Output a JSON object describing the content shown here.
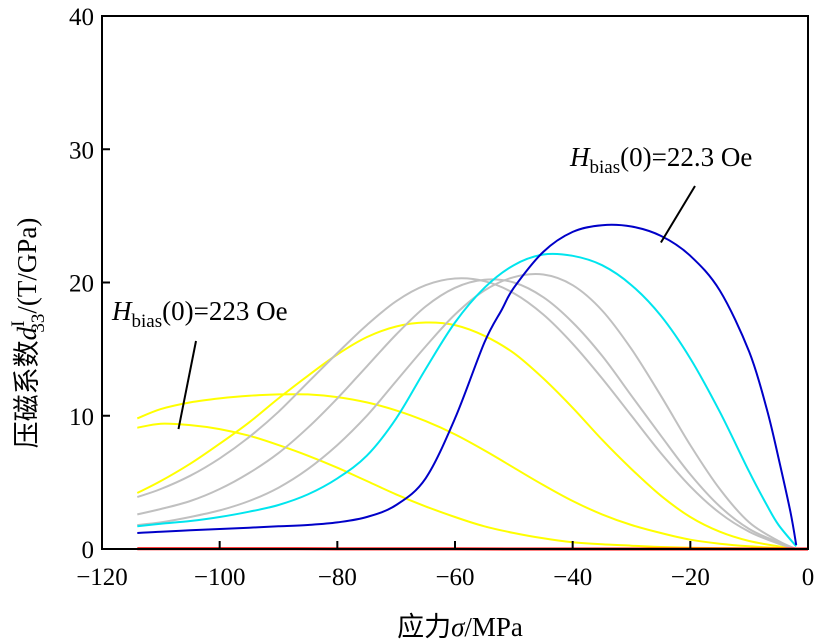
{
  "chart_data": {
    "type": "line",
    "xlabel": {
      "prefix": "应力",
      "symbol": "σ",
      "suffix": "/MPa"
    },
    "ylabel": {
      "prefix": "压磁系数",
      "symbol": "d",
      "sub": "33",
      "sup": "I",
      "suffix": "/(T/GPa)"
    },
    "xlim": [
      -120,
      0
    ],
    "ylim": [
      0,
      40
    ],
    "xticks": [
      -120,
      -100,
      -80,
      -60,
      -40,
      -20,
      0
    ],
    "xtick_labels": [
      "−120",
      "−100",
      "−80",
      "−60",
      "−40",
      "−20",
      "0"
    ],
    "yticks": [
      0,
      10,
      20,
      30,
      40
    ],
    "ytick_labels": [
      "0",
      "10",
      "20",
      "30",
      "40"
    ],
    "grid": false,
    "annotations": [
      {
        "italic": "H",
        "sub": "bias",
        "rest": "(0)=22.3 Oe",
        "point": [
          -25,
          23
        ]
      },
      {
        "italic": "H",
        "sub": "bias",
        "rest": "(0)=223 Oe",
        "point": [
          -107,
          9
        ]
      }
    ],
    "series": [
      {
        "color": "#ffff00",
        "x": [
          -114,
          -110,
          -105,
          -100,
          -95,
          -90,
          -85,
          -80,
          -75,
          -70,
          -65,
          -60,
          -55,
          -50,
          -45,
          -40,
          -35,
          -30,
          -25,
          -20,
          -15,
          -10,
          -5,
          -2
        ],
        "y": [
          9.1,
          9.4,
          9.3,
          9.0,
          8.5,
          7.8,
          7.0,
          6.1,
          5.1,
          4.1,
          3.2,
          2.4,
          1.7,
          1.2,
          0.8,
          0.5,
          0.35,
          0.25,
          0.15,
          0.1,
          0.07,
          0.04,
          0.02,
          0.0
        ]
      },
      {
        "color": "#ffff00",
        "x": [
          -114,
          -110,
          -105,
          -100,
          -95,
          -90,
          -85,
          -80,
          -75,
          -70,
          -65,
          -60,
          -55,
          -50,
          -45,
          -40,
          -35,
          -30,
          -25,
          -20,
          -15,
          -10,
          -5,
          -2
        ],
        "y": [
          9.8,
          10.5,
          11.0,
          11.3,
          11.5,
          11.6,
          11.6,
          11.4,
          11.0,
          10.4,
          9.6,
          8.6,
          7.4,
          6.1,
          4.8,
          3.6,
          2.6,
          1.8,
          1.2,
          0.7,
          0.4,
          0.2,
          0.08,
          0.0
        ]
      },
      {
        "color": "#ffff00",
        "x": [
          -114,
          -110,
          -105,
          -100,
          -95,
          -90,
          -85,
          -80,
          -75,
          -70,
          -65,
          -60,
          -55,
          -50,
          -45,
          -40,
          -35,
          -30,
          -25,
          -20,
          -15,
          -10,
          -5,
          -2
        ],
        "y": [
          4.2,
          5.1,
          6.4,
          7.9,
          9.5,
          11.3,
          13.0,
          14.6,
          15.9,
          16.7,
          17.0,
          16.8,
          16.0,
          14.7,
          12.8,
          10.6,
          8.2,
          6.0,
          4.0,
          2.4,
          1.3,
          0.6,
          0.2,
          0.0
        ]
      },
      {
        "color": "#c0c0c0",
        "x": [
          -114,
          -110,
          -105,
          -100,
          -95,
          -90,
          -85,
          -80,
          -75,
          -70,
          -65,
          -60,
          -55,
          -50,
          -45,
          -40,
          -35,
          -30,
          -25,
          -20,
          -15,
          -10,
          -5,
          -2
        ],
        "y": [
          3.9,
          4.5,
          5.5,
          6.8,
          8.4,
          10.3,
          12.5,
          14.7,
          16.8,
          18.6,
          19.8,
          20.3,
          20.1,
          19.2,
          17.6,
          15.4,
          12.8,
          10.0,
          7.2,
          4.7,
          2.7,
          1.3,
          0.4,
          0.0
        ]
      },
      {
        "color": "#c0c0c0",
        "x": [
          -114,
          -110,
          -105,
          -100,
          -95,
          -90,
          -85,
          -80,
          -75,
          -70,
          -65,
          -60,
          -55,
          -50,
          -45,
          -40,
          -35,
          -30,
          -25,
          -20,
          -15,
          -10,
          -5,
          -2
        ],
        "y": [
          2.6,
          3.0,
          3.6,
          4.5,
          5.7,
          7.2,
          9.1,
          11.3,
          13.7,
          16.1,
          18.2,
          19.6,
          20.2,
          20.0,
          18.9,
          17.0,
          14.5,
          11.5,
          8.5,
          5.6,
          3.2,
          1.5,
          0.5,
          0.0
        ]
      },
      {
        "color": "#c0c0c0",
        "x": [
          -114,
          -110,
          -105,
          -100,
          -95,
          -90,
          -85,
          -80,
          -75,
          -70,
          -65,
          -60,
          -55,
          -50,
          -45,
          -40,
          -35,
          -30,
          -25,
          -20,
          -15,
          -10,
          -5,
          -2
        ],
        "y": [
          1.8,
          2.0,
          2.4,
          2.9,
          3.6,
          4.6,
          6.0,
          7.8,
          10.0,
          12.6,
          15.2,
          17.6,
          19.4,
          20.4,
          20.6,
          19.8,
          17.9,
          15.0,
          11.5,
          7.8,
          4.5,
          2.0,
          0.6,
          0.0
        ]
      },
      {
        "color": "#00e5ee",
        "x": [
          -114,
          -110,
          -105,
          -100,
          -95,
          -90,
          -85,
          -80,
          -75,
          -70,
          -65,
          -60,
          -55,
          -50,
          -45,
          -40,
          -35,
          -30,
          -25,
          -20,
          -15,
          -10,
          -7,
          -5,
          -2
        ],
        "y": [
          1.7,
          1.9,
          2.1,
          2.4,
          2.8,
          3.3,
          4.1,
          5.3,
          7.0,
          9.8,
          13.5,
          17.0,
          19.6,
          21.3,
          22.1,
          22.0,
          21.3,
          19.8,
          17.5,
          14.3,
          10.3,
          5.8,
          3.3,
          1.8,
          0.2
        ]
      },
      {
        "color": "#0000c8",
        "x": [
          -114,
          -110,
          -105,
          -100,
          -95,
          -90,
          -85,
          -80,
          -75,
          -70,
          -65,
          -60,
          -55,
          -52,
          -50,
          -45,
          -40,
          -35,
          -30,
          -25,
          -20,
          -15,
          -10,
          -7,
          -5,
          -3,
          -2
        ],
        "y": [
          1.2,
          1.3,
          1.4,
          1.5,
          1.6,
          1.7,
          1.8,
          2.0,
          2.4,
          3.3,
          5.3,
          9.8,
          15.5,
          18.0,
          19.6,
          22.3,
          23.8,
          24.3,
          24.2,
          23.5,
          22.0,
          19.4,
          14.8,
          10.5,
          6.8,
          2.8,
          0.3
        ]
      },
      {
        "color": "#ff0000",
        "x": [
          -114,
          -100,
          -90,
          -80,
          -60,
          -40,
          -20,
          0
        ],
        "y": [
          0.02,
          0.02,
          0.02,
          0.01,
          0.01,
          0.0,
          0.0,
          0.0
        ]
      }
    ]
  }
}
